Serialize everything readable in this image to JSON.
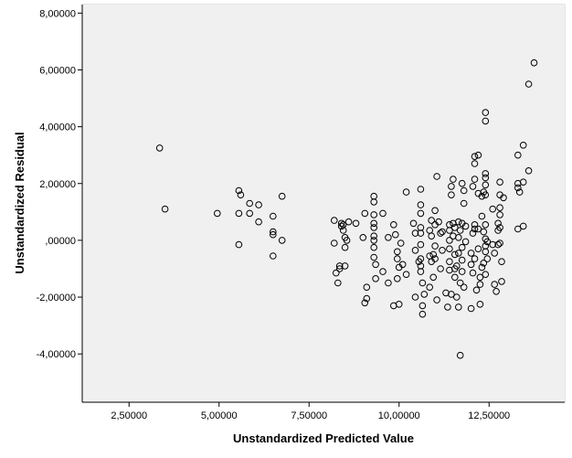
{
  "chart_data": {
    "type": "scatter",
    "title": "",
    "xlabel": "Unstandardized Predicted Value",
    "ylabel": "Unstandardized Residual",
    "xlim": [
      1.2,
      14.6
    ],
    "ylim": [
      -5.7,
      8.3
    ],
    "xticks": [
      2.5,
      5,
      7.5,
      10,
      12.5
    ],
    "xtick_labels": [
      "2,50000",
      "5,00000",
      "7,50000",
      "10,00000",
      "12,50000"
    ],
    "yticks": [
      -4,
      -2,
      0,
      2,
      4,
      6,
      8
    ],
    "ytick_labels": [
      "-4,00000",
      "-2,00000",
      ",00000",
      "2,00000",
      "4,00000",
      "6,00000",
      "8,00000"
    ],
    "grid": false,
    "colors": {
      "plot_background": "#f0f0f0",
      "marker_stroke": "#000000",
      "axis": "#000000",
      "frame": "#c8c8c8"
    },
    "points": [
      [
        3.35,
        3.25
      ],
      [
        3.5,
        1.1
      ],
      [
        4.95,
        0.95
      ],
      [
        5.55,
        1.75
      ],
      [
        5.6,
        1.6
      ],
      [
        5.55,
        0.95
      ],
      [
        5.55,
        -0.15
      ],
      [
        5.85,
        1.3
      ],
      [
        5.85,
        0.95
      ],
      [
        6.1,
        1.25
      ],
      [
        6.1,
        0.65
      ],
      [
        6.5,
        0.85
      ],
      [
        6.5,
        0.3
      ],
      [
        6.5,
        0.2
      ],
      [
        6.5,
        -0.55
      ],
      [
        6.75,
        1.55
      ],
      [
        6.75,
        0.0
      ],
      [
        8.2,
        0.7
      ],
      [
        8.2,
        -0.1
      ],
      [
        8.25,
        -1.15
      ],
      [
        8.3,
        -1.5
      ],
      [
        8.35,
        -0.9
      ],
      [
        8.35,
        -1.0
      ],
      [
        8.4,
        0.5
      ],
      [
        8.4,
        0.6
      ],
      [
        8.45,
        0.55
      ],
      [
        8.45,
        0.35
      ],
      [
        8.5,
        0.1
      ],
      [
        8.5,
        -0.25
      ],
      [
        8.5,
        -0.9
      ],
      [
        8.55,
        0.0
      ],
      [
        8.6,
        0.65
      ],
      [
        8.8,
        0.6
      ],
      [
        9.0,
        0.1
      ],
      [
        9.05,
        0.95
      ],
      [
        9.05,
        -2.2
      ],
      [
        9.1,
        -1.65
      ],
      [
        9.1,
        -2.05
      ],
      [
        9.3,
        1.55
      ],
      [
        9.3,
        1.35
      ],
      [
        9.3,
        0.9
      ],
      [
        9.3,
        0.6
      ],
      [
        9.3,
        0.45
      ],
      [
        9.3,
        0.15
      ],
      [
        9.3,
        0.0
      ],
      [
        9.3,
        -0.25
      ],
      [
        9.3,
        -0.6
      ],
      [
        9.35,
        -0.85
      ],
      [
        9.35,
        -1.35
      ],
      [
        9.55,
        0.95
      ],
      [
        9.55,
        -1.1
      ],
      [
        9.7,
        0.1
      ],
      [
        9.7,
        -1.5
      ],
      [
        9.85,
        0.55
      ],
      [
        9.85,
        -2.3
      ],
      [
        9.9,
        0.2
      ],
      [
        9.95,
        -0.4
      ],
      [
        9.95,
        -0.65
      ],
      [
        9.95,
        -1.35
      ],
      [
        10.0,
        -2.25
      ],
      [
        10.0,
        -0.95
      ],
      [
        10.05,
        -0.1
      ],
      [
        10.1,
        -0.85
      ],
      [
        10.2,
        1.7
      ],
      [
        10.2,
        -1.2
      ],
      [
        10.4,
        0.6
      ],
      [
        10.45,
        0.25
      ],
      [
        10.45,
        -0.35
      ],
      [
        10.45,
        -2.0
      ],
      [
        10.55,
        -0.75
      ],
      [
        10.6,
        1.8
      ],
      [
        10.6,
        1.25
      ],
      [
        10.6,
        0.95
      ],
      [
        10.6,
        0.45
      ],
      [
        10.6,
        0.25
      ],
      [
        10.6,
        -0.15
      ],
      [
        10.6,
        -0.65
      ],
      [
        10.6,
        -0.9
      ],
      [
        10.6,
        -1.1
      ],
      [
        10.65,
        -1.5
      ],
      [
        10.65,
        -2.6
      ],
      [
        10.65,
        -2.3
      ],
      [
        10.7,
        -1.9
      ],
      [
        10.85,
        -1.65
      ],
      [
        10.85,
        -0.55
      ],
      [
        10.85,
        0.35
      ],
      [
        10.9,
        0.7
      ],
      [
        10.9,
        0.15
      ],
      [
        10.9,
        -0.75
      ],
      [
        10.95,
        -0.5
      ],
      [
        10.95,
        -1.3
      ],
      [
        11.0,
        1.05
      ],
      [
        11.0,
        0.55
      ],
      [
        11.0,
        -0.2
      ],
      [
        11.0,
        -0.65
      ],
      [
        11.05,
        2.25
      ],
      [
        11.05,
        -2.1
      ],
      [
        11.1,
        0.65
      ],
      [
        11.15,
        0.25
      ],
      [
        11.15,
        -1.0
      ],
      [
        11.2,
        0.3
      ],
      [
        11.2,
        -0.35
      ],
      [
        11.3,
        -1.85
      ],
      [
        11.35,
        -2.35
      ],
      [
        11.4,
        0.55
      ],
      [
        11.4,
        0.35
      ],
      [
        11.4,
        0.0
      ],
      [
        11.4,
        -0.3
      ],
      [
        11.4,
        -0.75
      ],
      [
        11.4,
        -1.05
      ],
      [
        11.45,
        1.9
      ],
      [
        11.45,
        -1.9
      ],
      [
        11.45,
        1.6
      ],
      [
        11.5,
        2.15
      ],
      [
        11.5,
        0.6
      ],
      [
        11.5,
        0.15
      ],
      [
        11.55,
        0.45
      ],
      [
        11.55,
        -0.5
      ],
      [
        11.55,
        -1.0
      ],
      [
        11.55,
        -1.3
      ],
      [
        11.6,
        -2.0
      ],
      [
        11.6,
        -0.9
      ],
      [
        11.65,
        0.65
      ],
      [
        11.65,
        0.1
      ],
      [
        11.65,
        -0.45
      ],
      [
        11.65,
        -2.35
      ],
      [
        11.7,
        -4.05
      ],
      [
        11.7,
        0.35
      ],
      [
        11.7,
        -1.5
      ],
      [
        11.75,
        2.0
      ],
      [
        11.75,
        0.6
      ],
      [
        11.75,
        -0.25
      ],
      [
        11.75,
        -0.7
      ],
      [
        11.75,
        -1.1
      ],
      [
        11.8,
        1.75
      ],
      [
        11.8,
        1.3
      ],
      [
        11.8,
        -1.65
      ],
      [
        11.85,
        0.5
      ],
      [
        11.85,
        -0.05
      ],
      [
        12.0,
        -0.45
      ],
      [
        12.0,
        -0.85
      ],
      [
        12.0,
        -2.4
      ],
      [
        12.05,
        1.9
      ],
      [
        12.05,
        0.25
      ],
      [
        12.05,
        -1.15
      ],
      [
        12.1,
        2.7
      ],
      [
        12.1,
        2.95
      ],
      [
        12.1,
        2.15
      ],
      [
        12.1,
        0.55
      ],
      [
        12.1,
        0.4
      ],
      [
        12.1,
        -0.65
      ],
      [
        12.15,
        -1.75
      ],
      [
        12.2,
        3.0
      ],
      [
        12.2,
        1.65
      ],
      [
        12.2,
        0.4
      ],
      [
        12.2,
        -0.3
      ],
      [
        12.25,
        -1.3
      ],
      [
        12.25,
        -1.55
      ],
      [
        12.25,
        -2.25
      ],
      [
        12.3,
        1.55
      ],
      [
        12.3,
        0.85
      ],
      [
        12.3,
        -0.95
      ],
      [
        12.35,
        1.7
      ],
      [
        12.35,
        0.3
      ],
      [
        12.35,
        -0.8
      ],
      [
        12.4,
        4.5
      ],
      [
        12.4,
        4.2
      ],
      [
        12.4,
        2.35
      ],
      [
        12.4,
        2.2
      ],
      [
        12.4,
        1.95
      ],
      [
        12.4,
        1.6
      ],
      [
        12.4,
        0.55
      ],
      [
        12.4,
        0.05
      ],
      [
        12.4,
        -0.2
      ],
      [
        12.4,
        -0.4
      ],
      [
        12.4,
        -1.2
      ],
      [
        12.45,
        -0.05
      ],
      [
        12.45,
        -0.65
      ],
      [
        12.6,
        1.1
      ],
      [
        12.6,
        -0.15
      ],
      [
        12.65,
        -0.45
      ],
      [
        12.65,
        -1.55
      ],
      [
        12.7,
        -1.8
      ],
      [
        12.75,
        0.6
      ],
      [
        12.75,
        0.35
      ],
      [
        12.75,
        -0.15
      ],
      [
        12.8,
        2.05
      ],
      [
        12.8,
        1.6
      ],
      [
        12.8,
        1.15
      ],
      [
        12.8,
        0.9
      ],
      [
        12.8,
        0.45
      ],
      [
        12.8,
        -0.1
      ],
      [
        12.85,
        -0.75
      ],
      [
        12.85,
        -1.45
      ],
      [
        12.9,
        1.5
      ],
      [
        13.3,
        3.0
      ],
      [
        13.3,
        2.0
      ],
      [
        13.3,
        1.85
      ],
      [
        13.3,
        0.4
      ],
      [
        13.35,
        1.7
      ],
      [
        13.45,
        3.35
      ],
      [
        13.45,
        2.05
      ],
      [
        13.45,
        0.5
      ],
      [
        13.6,
        5.5
      ],
      [
        13.6,
        2.45
      ],
      [
        13.75,
        6.25
      ]
    ]
  }
}
